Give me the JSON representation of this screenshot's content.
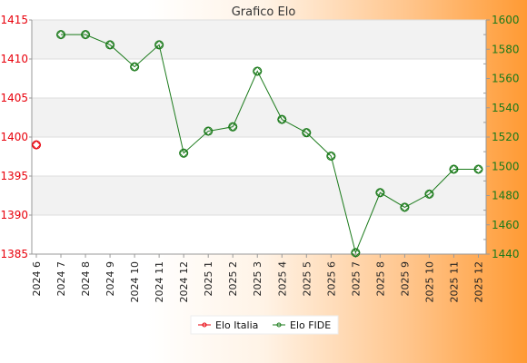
{
  "chart_data": {
    "type": "line",
    "title": "Grafico Elo",
    "categories": [
      "2024 6",
      "2024 7",
      "2024 8",
      "2024 9",
      "2024 10",
      "2024 11",
      "2024 12",
      "2025 1",
      "2025 2",
      "2025 3",
      "2025 4",
      "2025 5",
      "2025 6",
      "2025 7",
      "2025 8",
      "2025 9",
      "2025 10",
      "2025 11",
      "2025 12"
    ],
    "y_left": {
      "min": 1385,
      "max": 1415,
      "ticks": [
        1385,
        1390,
        1395,
        1400,
        1405,
        1410,
        1415
      ]
    },
    "y_right": {
      "min": 1440,
      "max": 1600,
      "ticks": [
        1440,
        1460,
        1480,
        1500,
        1520,
        1540,
        1560,
        1580,
        1600
      ]
    },
    "grid": true,
    "legend_position": "bottom",
    "series": [
      {
        "name": "Elo Italia",
        "axis": "left",
        "color": "#e8000b",
        "values": [
          1399,
          null,
          null,
          null,
          null,
          null,
          null,
          null,
          null,
          null,
          null,
          null,
          null,
          null,
          null,
          null,
          null,
          null,
          null
        ]
      },
      {
        "name": "Elo FIDE",
        "axis": "right",
        "color": "#1a7a1a",
        "values": [
          null,
          1590,
          1590,
          1583,
          1568,
          1583,
          1509,
          1524,
          1527,
          1565,
          1532,
          1523,
          1507,
          1441,
          1482,
          1472,
          1481,
          1498,
          1498
        ]
      }
    ]
  }
}
